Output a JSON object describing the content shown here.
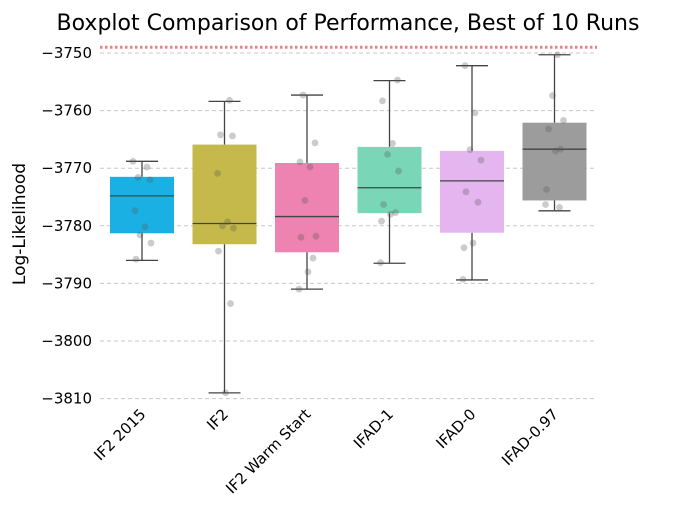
{
  "chart_data": {
    "type": "boxplot",
    "title": "Boxplot Comparison of Performance, Best of 10 Runs",
    "xlabel": "",
    "ylabel": "Log-Likelihood",
    "ylim": [
      -3812,
      -3749
    ],
    "yticks": [
      -3750,
      -3760,
      -3770,
      -3780,
      -3790,
      -3800,
      -3810
    ],
    "grid": true,
    "reference_line": {
      "y": -3749,
      "color": "#f08080"
    },
    "categories": [
      "IF2 2015",
      "IF2",
      "IF2 Warm Start",
      "IFAD-1",
      "IFAD-0",
      "IFAD-0.97"
    ],
    "boxes": [
      {
        "category": "IF2 2015",
        "color": "#1ab0e3",
        "whisker_low": -3786,
        "q1": -3781.3,
        "median": -3774.8,
        "q3": -3771.5,
        "whisker_high": -3768.8,
        "points": [
          -3768.8,
          -3769.8,
          -3771.6,
          -3772.0,
          -3777.4,
          -3780.2,
          -3781.6,
          -3783.0,
          -3785.8
        ]
      },
      {
        "category": "IF2",
        "color": "#c4b94a",
        "whisker_low": -3809,
        "q1": -3783.2,
        "median": -3779.6,
        "q3": -3765.9,
        "whisker_high": -3758.4,
        "points": [
          -3758.2,
          -3764.2,
          -3764.4,
          -3770.9,
          -3779.3,
          -3780.0,
          -3780.4,
          -3784.4,
          -3793.5,
          -3809.0
        ]
      },
      {
        "category": "IF2 Warm Start",
        "color": "#ee82b0",
        "whisker_low": -3791,
        "q1": -3784.6,
        "median": -3778.4,
        "q3": -3769.1,
        "whisker_high": -3757.3,
        "points": [
          -3757.3,
          -3765.6,
          -3768.9,
          -3769.8,
          -3775.6,
          -3781.8,
          -3782.0,
          -3785.6,
          -3788.0,
          -3791.0
        ]
      },
      {
        "category": "IFAD-1",
        "color": "#79d6b6",
        "whisker_low": -3786.5,
        "q1": -3777.8,
        "median": -3773.4,
        "q3": -3766.3,
        "whisker_high": -3754.8,
        "points": [
          -3754.7,
          -3758.3,
          -3765.7,
          -3767.6,
          -3770.5,
          -3776.3,
          -3777.7,
          -3778.0,
          -3779.2,
          -3786.4
        ]
      },
      {
        "category": "IFAD-0",
        "color": "#e5b5f0",
        "whisker_low": -3789.4,
        "q1": -3781.2,
        "median": -3772.2,
        "q3": -3767.0,
        "whisker_high": -3752.2,
        "points": [
          -3752.2,
          -3760.4,
          -3766.8,
          -3768.6,
          -3774.1,
          -3775.9,
          -3783.0,
          -3783.8,
          -3789.3
        ]
      },
      {
        "category": "IFAD-0.97",
        "color": "#9c9c9c",
        "whisker_low": -3777.4,
        "q1": -3775.6,
        "median": -3766.7,
        "q3": -3762.1,
        "whisker_high": -3750.3,
        "points": [
          -3750.3,
          -3757.4,
          -3761.7,
          -3763.2,
          -3766.7,
          -3767.0,
          -3773.7,
          -3776.3,
          -3776.8
        ]
      }
    ]
  }
}
